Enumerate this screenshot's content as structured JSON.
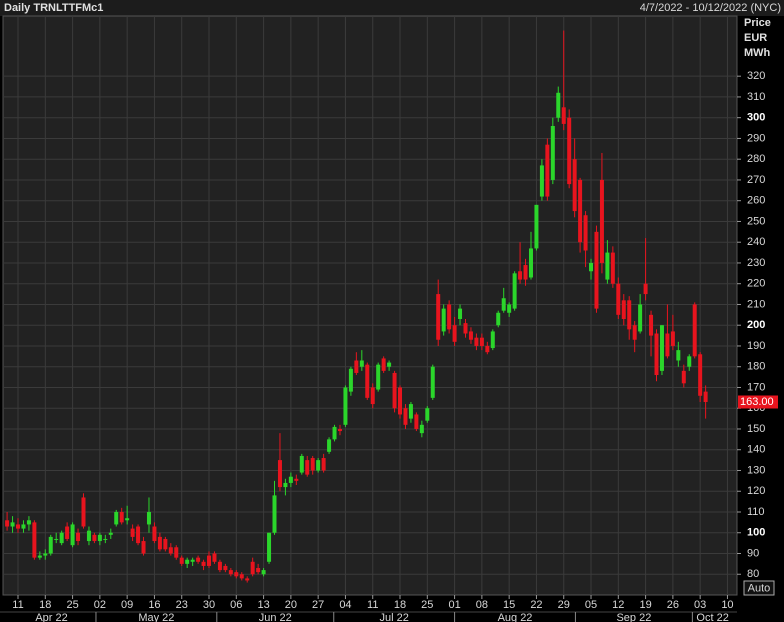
{
  "chart_data": {
    "type": "candlestick",
    "title": "Daily TRNLTTFMc1",
    "date_range": "4/7/2022 - 10/12/2022 (NYC)",
    "y_axis_title": [
      "Price",
      "EUR",
      "MWh"
    ],
    "button": "Auto",
    "up_color": "#2bd62b",
    "down_color": "#e8141e",
    "grid": true,
    "ylim": [
      70,
      349
    ],
    "yticks": [
      80,
      90,
      100,
      110,
      120,
      130,
      140,
      150,
      160,
      170,
      180,
      190,
      200,
      210,
      220,
      230,
      240,
      250,
      260,
      270,
      280,
      290,
      300,
      310,
      320
    ],
    "last_price": {
      "value": 163,
      "label": "163.00"
    },
    "months": [
      "Apr 22",
      "May 22",
      "Jun 22",
      "Jul 22",
      "Aug 22",
      "Sep 22",
      "Oct 22"
    ],
    "categories": [
      null,
      null,
      "11",
      null,
      null,
      null,
      null,
      "18",
      null,
      null,
      null,
      null,
      "25",
      null,
      null,
      null,
      null,
      "02",
      null,
      null,
      null,
      null,
      "09",
      null,
      null,
      null,
      null,
      "16",
      null,
      null,
      null,
      null,
      "23",
      null,
      null,
      null,
      null,
      "30",
      null,
      null,
      null,
      null,
      "06",
      null,
      null,
      null,
      null,
      "13",
      null,
      null,
      null,
      null,
      "20",
      null,
      null,
      null,
      null,
      "27",
      null,
      null,
      null,
      null,
      "04",
      null,
      null,
      null,
      null,
      "11",
      null,
      null,
      null,
      null,
      "18",
      null,
      null,
      null,
      null,
      "25",
      null,
      null,
      null,
      null,
      "01",
      null,
      null,
      null,
      null,
      "08",
      null,
      null,
      null,
      null,
      "15",
      null,
      null,
      null,
      null,
      "22",
      null,
      null,
      null,
      null,
      "29",
      null,
      null,
      null,
      null,
      "05",
      null,
      null,
      null,
      null,
      "12",
      null,
      null,
      null,
      null,
      "19",
      null,
      null,
      null,
      null,
      "26",
      null,
      null,
      null,
      null,
      "03",
      null,
      null,
      null,
      null,
      "10"
    ],
    "ohlc": [
      [
        106,
        110,
        101,
        103
      ],
      [
        103,
        108,
        100,
        105
      ],
      [
        104,
        107,
        100,
        102
      ],
      [
        102,
        106,
        100,
        104
      ],
      [
        104,
        108,
        101,
        106
      ],
      [
        105,
        106,
        87,
        88
      ],
      [
        88,
        91,
        87,
        89
      ],
      [
        89,
        92,
        87,
        90
      ],
      [
        90,
        99,
        89,
        98
      ],
      [
        97,
        100,
        95,
        97
      ],
      [
        95,
        101,
        94,
        100
      ],
      [
        103,
        105,
        96,
        97
      ],
      [
        94,
        105,
        93,
        104
      ],
      [
        100,
        102,
        94,
        96
      ],
      [
        117,
        119,
        102,
        103
      ],
      [
        96,
        103,
        94,
        101
      ],
      [
        99,
        100,
        95,
        96
      ],
      [
        96,
        100,
        94,
        99
      ],
      [
        97,
        99,
        95,
        97
      ],
      [
        99,
        102,
        97,
        100
      ],
      [
        104,
        111,
        103,
        110
      ],
      [
        110,
        112,
        104,
        105
      ],
      [
        106,
        113,
        104,
        107
      ],
      [
        102,
        104,
        96,
        98
      ],
      [
        103,
        104,
        94,
        95
      ],
      [
        96,
        98,
        89,
        90
      ],
      [
        104,
        117,
        100,
        110
      ],
      [
        103,
        105,
        95,
        96
      ],
      [
        98,
        100,
        91,
        92
      ],
      [
        97,
        98,
        91,
        92
      ],
      [
        93,
        95,
        89,
        90
      ],
      [
        93,
        94,
        87,
        88
      ],
      [
        88,
        89,
        84,
        85
      ],
      [
        85,
        88,
        83,
        87
      ],
      [
        86,
        88,
        84,
        87
      ],
      [
        88,
        89,
        85,
        86
      ],
      [
        86,
        87,
        82,
        84
      ],
      [
        89,
        91,
        83,
        84
      ],
      [
        90,
        91,
        85,
        86
      ],
      [
        86,
        87,
        81,
        82
      ],
      [
        84,
        85,
        81,
        82
      ],
      [
        82,
        83,
        79,
        80
      ],
      [
        81,
        82,
        78,
        79
      ],
      [
        80,
        81,
        77,
        78
      ],
      [
        78,
        79,
        76,
        77
      ],
      [
        86,
        88,
        79,
        80
      ],
      [
        83,
        85,
        80,
        81
      ],
      [
        80,
        83,
        79,
        82
      ],
      [
        86,
        100,
        85,
        100
      ],
      [
        100,
        125,
        99,
        118
      ],
      [
        135,
        148,
        120,
        122
      ],
      [
        122,
        126,
        118,
        124
      ],
      [
        124,
        129,
        122,
        127
      ],
      [
        126,
        128,
        123,
        125
      ],
      [
        129,
        138,
        128,
        137
      ],
      [
        135,
        137,
        127,
        128
      ],
      [
        136,
        137,
        128,
        130
      ],
      [
        130,
        136,
        129,
        135
      ],
      [
        136,
        138,
        129,
        130
      ],
      [
        139,
        146,
        138,
        145
      ],
      [
        145,
        152,
        144,
        151
      ],
      [
        150,
        152,
        147,
        149
      ],
      [
        152,
        171,
        151,
        170
      ],
      [
        168,
        180,
        166,
        179
      ],
      [
        183,
        187,
        176,
        177
      ],
      [
        180,
        188,
        178,
        183
      ],
      [
        181,
        182,
        164,
        165
      ],
      [
        170,
        172,
        160,
        162
      ],
      [
        169,
        182,
        168,
        181
      ],
      [
        184,
        185,
        177,
        178
      ],
      [
        180,
        183,
        178,
        182
      ],
      [
        177,
        178,
        158,
        160
      ],
      [
        170,
        171,
        155,
        157
      ],
      [
        160,
        162,
        150,
        152
      ],
      [
        155,
        163,
        153,
        162
      ],
      [
        157,
        158,
        149,
        150
      ],
      [
        148,
        154,
        146,
        152
      ],
      [
        154,
        161,
        153,
        160
      ],
      [
        165,
        181,
        164,
        180
      ],
      [
        215,
        222,
        190,
        193
      ],
      [
        197,
        210,
        195,
        208
      ],
      [
        210,
        212,
        196,
        198
      ],
      [
        200,
        204,
        190,
        192
      ],
      [
        203,
        210,
        200,
        208
      ],
      [
        201,
        203,
        194,
        196
      ],
      [
        197,
        199,
        191,
        193
      ],
      [
        194,
        196,
        188,
        190
      ],
      [
        194,
        196,
        188,
        190
      ],
      [
        190,
        192,
        186,
        187
      ],
      [
        189,
        198,
        188,
        197
      ],
      [
        200,
        207,
        199,
        206
      ],
      [
        207,
        218,
        206,
        213
      ],
      [
        206,
        211,
        204,
        210
      ],
      [
        208,
        226,
        207,
        225
      ],
      [
        226,
        240,
        220,
        222
      ],
      [
        229,
        232,
        219,
        222
      ],
      [
        223,
        245,
        222,
        237
      ],
      [
        237,
        258,
        236,
        258
      ],
      [
        262,
        280,
        260,
        277
      ],
      [
        287,
        290,
        260,
        262
      ],
      [
        270,
        300,
        268,
        296
      ],
      [
        300,
        315,
        298,
        312
      ],
      [
        305,
        342,
        294,
        297
      ],
      [
        300,
        304,
        266,
        268
      ],
      [
        280,
        290,
        252,
        255
      ],
      [
        270,
        271,
        235,
        240
      ],
      [
        253,
        255,
        228,
        236
      ],
      [
        226,
        232,
        222,
        230
      ],
      [
        245,
        248,
        206,
        208
      ],
      [
        270,
        283,
        225,
        230
      ],
      [
        222,
        241,
        220,
        235
      ],
      [
        235,
        238,
        218,
        220
      ],
      [
        220,
        223,
        203,
        205
      ],
      [
        212,
        215,
        200,
        203
      ],
      [
        212,
        214,
        193,
        198
      ],
      [
        200,
        202,
        187,
        193
      ],
      [
        197,
        215,
        196,
        210
      ],
      [
        220,
        242,
        212,
        215
      ],
      [
        205,
        207,
        185,
        195
      ],
      [
        196,
        198,
        173,
        176
      ],
      [
        178,
        200,
        176,
        200
      ],
      [
        196,
        210,
        184,
        185
      ],
      [
        197,
        205,
        188,
        190
      ],
      [
        183,
        192,
        180,
        188
      ],
      [
        178,
        181,
        170,
        172
      ],
      [
        180,
        186,
        178,
        185
      ],
      [
        210,
        211,
        184,
        185
      ],
      [
        186,
        187,
        163,
        166
      ],
      [
        168,
        171,
        155,
        163
      ],
      null,
      null,
      null,
      null
    ]
  }
}
